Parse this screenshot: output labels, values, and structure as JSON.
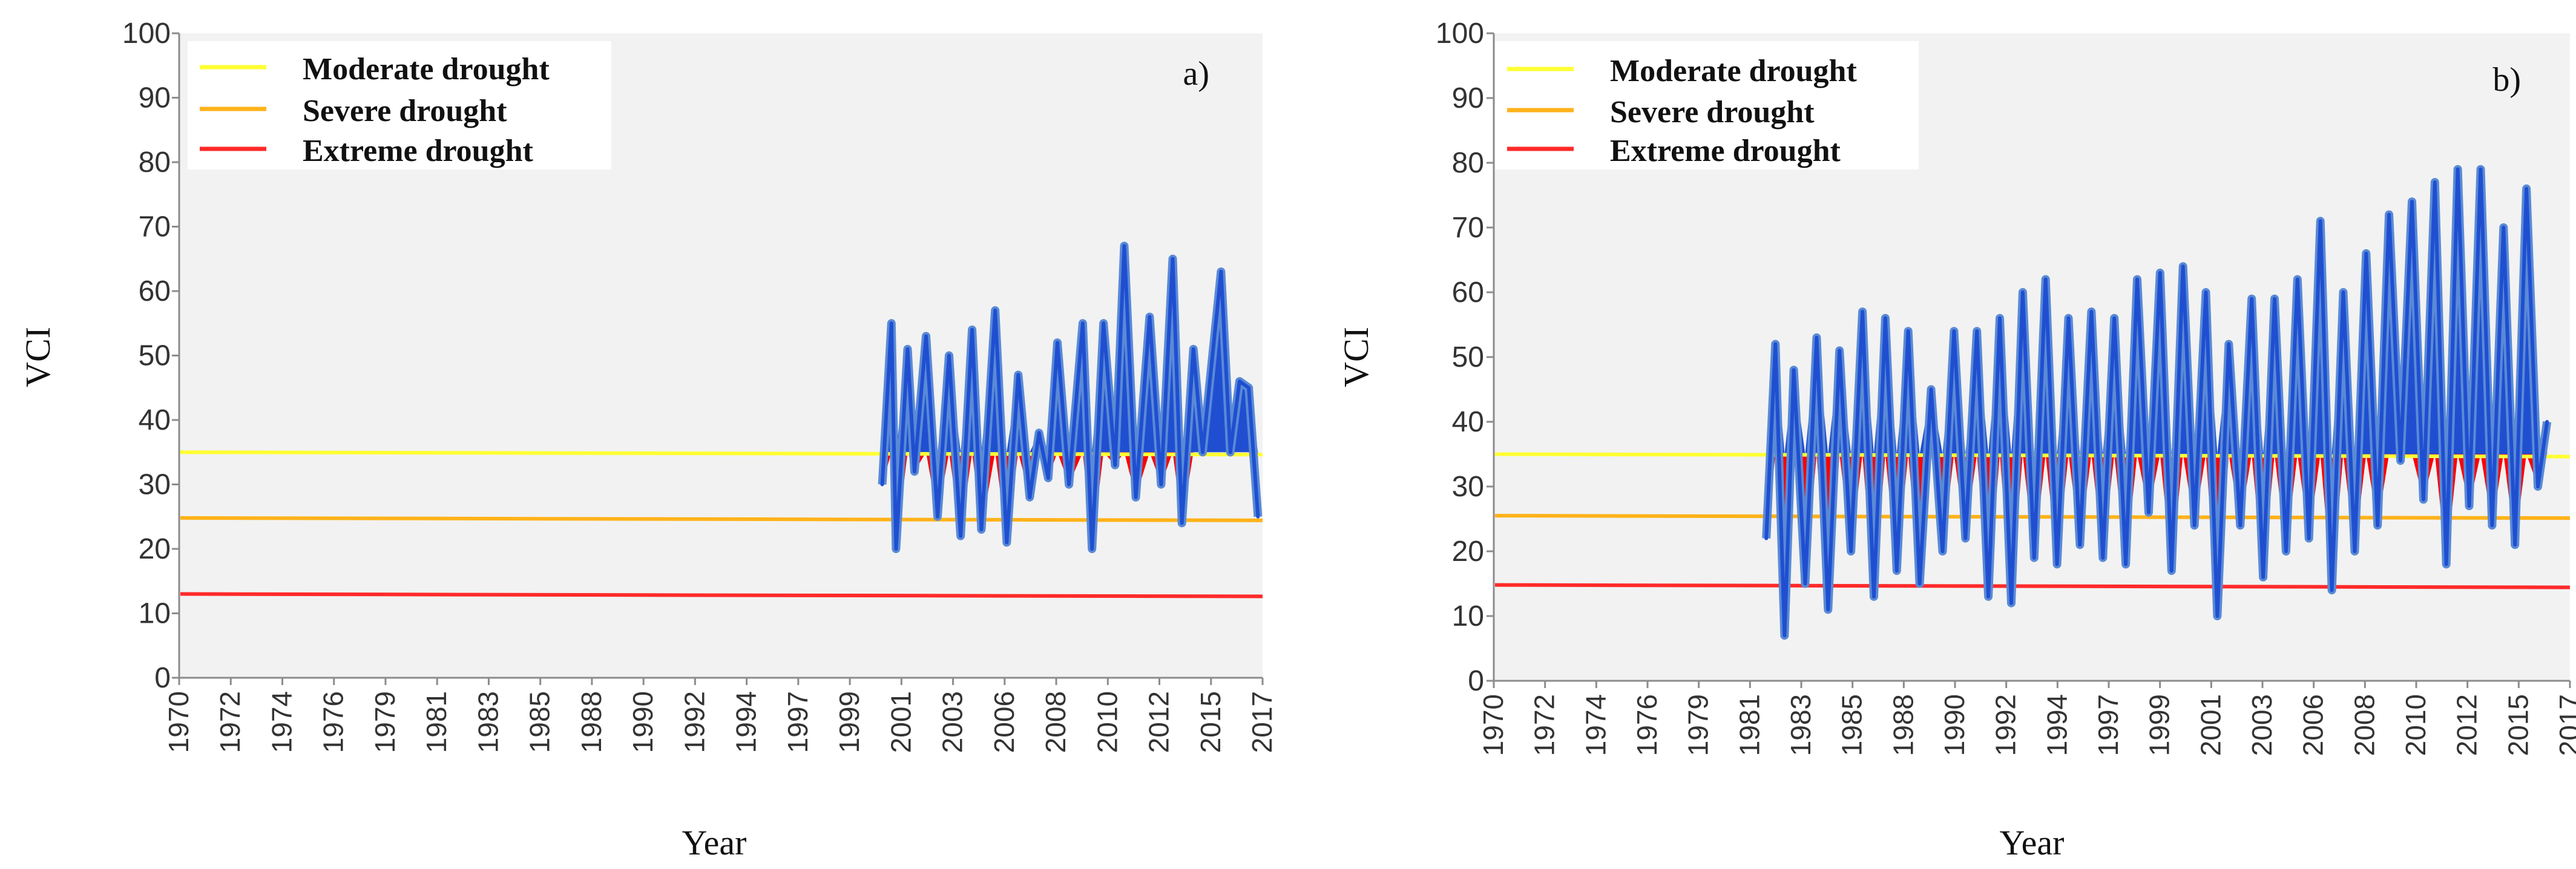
{
  "chart_data": [
    {
      "id": "a",
      "type": "line",
      "panel_label": "a)",
      "xlabel": "Year",
      "ylabel": "VCI",
      "ylim": [
        0,
        100
      ],
      "yticks": [
        0,
        10,
        20,
        30,
        40,
        50,
        60,
        70,
        80,
        90,
        100
      ],
      "xticks": [
        "1970",
        "1972",
        "1974",
        "1976",
        "1979",
        "1981",
        "1983",
        "1985",
        "1988",
        "1990",
        "1992",
        "1994",
        "1997",
        "1999",
        "2001",
        "2003",
        "2006",
        "2008",
        "2010",
        "2012",
        "2015",
        "2017"
      ],
      "legend": [
        {
          "label": "Moderate drought",
          "color": "#ffff33"
        },
        {
          "label": "Severe drought",
          "color": "#ffb219"
        },
        {
          "label": "Extreme drought",
          "color": "#ff2a2a"
        }
      ],
      "thresholds": {
        "moderate": 35,
        "severe": 24.8,
        "extreme": 13
      },
      "series_color": "#1f4fd0",
      "series_edge_color": "#5a8ad6",
      "below_fill_color": "#ff0000",
      "series": {
        "name": "VCI",
        "x": [
          2000.5,
          2000.9,
          2001.1,
          2001.6,
          2001.9,
          2002.4,
          2002.9,
          2003.4,
          2003.9,
          2004.4,
          2004.8,
          2005.4,
          2005.9,
          2006.4,
          2006.9,
          2007.3,
          2007.7,
          2008.1,
          2008.6,
          2009.2,
          2009.6,
          2010.1,
          2010.6,
          2011.0,
          2011.5,
          2012.1,
          2012.6,
          2013.1,
          2013.5,
          2014.0,
          2014.4,
          2014.8,
          2015.2,
          2015.6,
          2016.0,
          2016.4,
          2016.8
        ],
        "y": [
          30,
          55,
          20,
          51,
          32,
          53,
          25,
          50,
          22,
          54,
          23,
          57,
          21,
          47,
          28,
          38,
          31,
          52,
          30,
          55,
          20,
          55,
          33,
          67,
          28,
          56,
          30,
          65,
          24,
          51,
          35,
          49,
          63,
          35,
          46,
          45,
          25
        ]
      }
    },
    {
      "id": "b",
      "type": "line",
      "panel_label": "b)",
      "xlabel": "Year",
      "ylabel": "VCI",
      "ylim": [
        0,
        100
      ],
      "yticks": [
        0,
        10,
        20,
        30,
        40,
        50,
        60,
        70,
        80,
        90,
        100
      ],
      "xticks": [
        "1970",
        "1972",
        "1974",
        "1976",
        "1979",
        "1981",
        "1983",
        "1985",
        "1988",
        "1990",
        "1992",
        "1994",
        "1997",
        "1999",
        "2001",
        "2003",
        "2006",
        "2008",
        "2010",
        "2012",
        "2015",
        "2017"
      ],
      "legend": [
        {
          "label": "Moderate drought",
          "color": "#ffff33"
        },
        {
          "label": "Severe drought",
          "color": "#ffb219"
        },
        {
          "label": "Extreme drought",
          "color": "#ff2a2a"
        }
      ],
      "thresholds": {
        "moderate": 35,
        "severe": 25.5,
        "extreme": 14.8
      },
      "series_color": "#1f4fd0",
      "series_edge_color": "#5a8ad6",
      "below_fill_color": "#ff0000",
      "series": {
        "name": "VCI",
        "x": [
          1981.9,
          1982.3,
          1982.7,
          1983.1,
          1983.6,
          1984.1,
          1984.6,
          1985.1,
          1985.6,
          1986.1,
          1986.6,
          1987.1,
          1987.6,
          1988.1,
          1988.6,
          1989.1,
          1989.6,
          1990.1,
          1990.6,
          1991.1,
          1991.6,
          1992.1,
          1992.6,
          1993.1,
          1993.6,
          1994.1,
          1994.6,
          1995.1,
          1995.6,
          1996.1,
          1996.6,
          1997.1,
          1997.6,
          1998.1,
          1998.6,
          1999.1,
          1999.6,
          2000.1,
          2000.6,
          2001.1,
          2001.6,
          2002.1,
          2002.6,
          2003.1,
          2003.6,
          2004.1,
          2004.6,
          2005.1,
          2005.6,
          2006.1,
          2006.6,
          2007.1,
          2007.6,
          2008.1,
          2008.6,
          2009.1,
          2009.6,
          2010.1,
          2010.6,
          2011.1,
          2011.6,
          2012.1,
          2012.6,
          2013.1,
          2013.6,
          2014.1,
          2014.6,
          2015.1,
          2015.6,
          2016.0
        ],
        "y": [
          22,
          52,
          7,
          48,
          15,
          53,
          11,
          51,
          20,
          57,
          13,
          56,
          17,
          54,
          15,
          45,
          20,
          54,
          22,
          54,
          13,
          56,
          12,
          60,
          19,
          62,
          18,
          56,
          21,
          57,
          19,
          56,
          18,
          62,
          26,
          63,
          17,
          64,
          24,
          60,
          10,
          52,
          24,
          59,
          16,
          59,
          20,
          62,
          22,
          71,
          14,
          60,
          20,
          66,
          24,
          72,
          34,
          74,
          28,
          77,
          18,
          79,
          27,
          79,
          24,
          70,
          21,
          76,
          30,
          40
        ]
      }
    }
  ]
}
